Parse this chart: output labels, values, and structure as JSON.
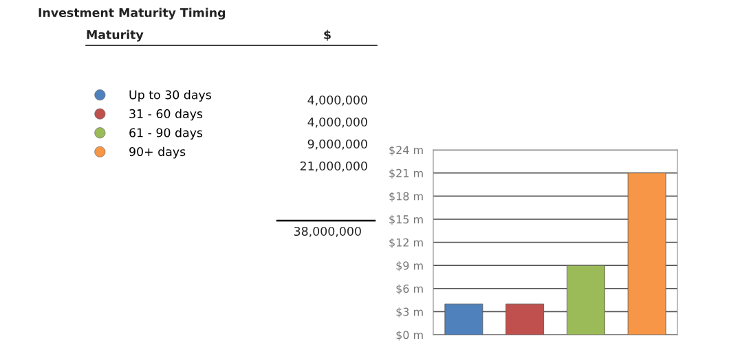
{
  "chart_data": {
    "type": "bar",
    "title": "Investment Maturity Timing",
    "categories": [
      null,
      null,
      null,
      null
    ],
    "series": [
      {
        "name": "Up to 30 days",
        "color": "#4f81bd",
        "values": [
          4,
          null,
          null,
          null
        ]
      },
      {
        "name": "31 - 60 days",
        "color": "#c0504d",
        "values": [
          null,
          4,
          null,
          null
        ]
      },
      {
        "name": "61 - 90 days",
        "color": "#9bbb59",
        "values": [
          null,
          null,
          9,
          null
        ]
      },
      {
        "name": "90+ days",
        "color": "#f79646",
        "values": [
          null,
          null,
          null,
          21
        ]
      }
    ],
    "annotations": [
      "Maturity",
      "$",
      "4,000,000",
      "4,000,000",
      "9,000,000",
      "21,000,000",
      "38,000,000"
    ],
    "ylim": [
      0,
      24
    ],
    "yticks": [
      {
        "value": 0,
        "label": "$0 m"
      },
      {
        "value": 3,
        "label": "$3 m"
      },
      {
        "value": 6,
        "label": "$6 m"
      },
      {
        "value": 9,
        "label": "$9 m"
      },
      {
        "value": 12,
        "label": "$12 m"
      },
      {
        "value": 15,
        "label": "$15 m"
      },
      {
        "value": 18,
        "label": "$18 m"
      },
      {
        "value": 21,
        "label": "$21 m"
      },
      {
        "value": 24,
        "label": "$24 m"
      }
    ],
    "grid": "y",
    "tick_labels": "y",
    "legend": "left",
    "marker": "circle"
  }
}
